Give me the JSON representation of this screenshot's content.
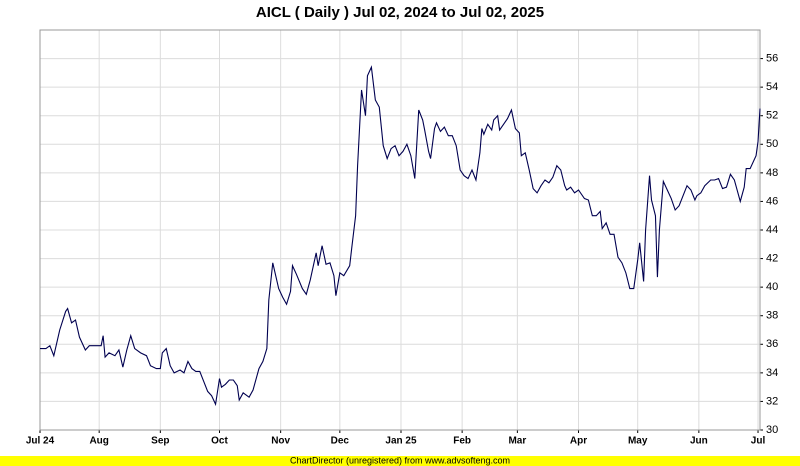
{
  "chart_data": {
    "type": "line",
    "title": "AICL ( Daily ) Jul 02, 2024 to Jul 02, 2025",
    "footer": "ChartDirector (unregistered) from www.advsofteng.com",
    "xlim": [
      0,
      365
    ],
    "ylim": [
      30,
      58
    ],
    "yticks": [
      30,
      32,
      34,
      36,
      38,
      40,
      42,
      44,
      46,
      48,
      50,
      52,
      54,
      56
    ],
    "xticks": [
      {
        "value": 0,
        "label": "Jul 24"
      },
      {
        "value": 30,
        "label": "Aug"
      },
      {
        "value": 61,
        "label": "Sep"
      },
      {
        "value": 91,
        "label": "Oct"
      },
      {
        "value": 122,
        "label": "Nov"
      },
      {
        "value": 152,
        "label": "Dec"
      },
      {
        "value": 183,
        "label": "Jan 25"
      },
      {
        "value": 214,
        "label": "Feb"
      },
      {
        "value": 242,
        "label": "Mar"
      },
      {
        "value": 273,
        "label": "Apr"
      },
      {
        "value": 303,
        "label": "May"
      },
      {
        "value": 334,
        "label": "Jun"
      },
      {
        "value": 364,
        "label": "Jul"
      }
    ],
    "grid": true,
    "y_axis_side": "right",
    "series": [
      {
        "color": "#000050",
        "x": [
          0,
          3,
          5,
          7,
          10,
          13,
          14,
          16,
          18,
          20,
          23,
          25,
          28,
          31,
          32,
          33,
          35,
          38,
          40,
          42,
          44,
          46,
          48,
          51,
          54,
          56,
          59,
          61,
          62,
          64,
          66,
          68,
          71,
          73,
          75,
          77,
          79,
          81,
          83,
          85,
          87,
          89,
          91,
          92,
          94,
          96,
          98,
          100,
          101,
          103,
          104,
          106,
          108,
          111,
          113,
          115,
          116,
          118,
          121,
          123,
          125,
          127,
          128,
          130,
          133,
          135,
          137,
          140,
          141,
          143,
          145,
          147,
          149,
          150,
          152,
          154,
          157,
          158,
          160,
          161,
          163,
          165,
          166,
          168,
          170,
          172,
          174,
          176,
          178,
          180,
          182,
          184,
          186,
          188,
          190,
          192,
          194,
          195,
          197,
          198,
          200,
          201,
          203,
          205,
          207,
          209,
          211,
          213,
          215,
          217,
          219,
          221,
          223,
          224,
          225,
          227,
          229,
          230,
          232,
          233,
          235,
          237,
          239,
          241,
          243,
          244,
          246,
          248,
          250,
          252,
          254,
          256,
          258,
          260,
          262,
          264,
          266,
          267,
          269,
          271,
          273,
          276,
          278,
          280,
          282,
          284,
          285,
          287,
          289,
          291,
          293,
          295,
          297,
          299,
          301,
          303,
          304,
          306,
          307,
          309,
          310,
          312,
          313,
          314,
          316,
          318,
          320,
          322,
          324,
          326,
          328,
          330,
          332,
          333,
          335,
          337,
          340,
          342,
          344,
          346,
          348,
          350,
          352,
          353,
          355,
          357,
          358,
          360,
          363,
          364,
          365
        ],
        "values": [
          35.7,
          35.7,
          35.9,
          35.2,
          37,
          38.3,
          38.5,
          37.5,
          37.7,
          36.5,
          35.6,
          35.9,
          35.9,
          35.9,
          36.6,
          35.1,
          35.4,
          35.2,
          35.6,
          34.4,
          35.6,
          36.6,
          35.7,
          35.4,
          35.2,
          34.5,
          34.3,
          34.3,
          35.4,
          35.7,
          34.5,
          34,
          34.2,
          34,
          34.8,
          34.3,
          34.1,
          34.1,
          33.4,
          32.7,
          32.4,
          31.8,
          33.6,
          33,
          33.2,
          33.5,
          33.5,
          33.1,
          32.1,
          32.6,
          32.5,
          32.3,
          32.8,
          34.3,
          34.8,
          35.7,
          39.1,
          41.7,
          39.9,
          39.3,
          38.8,
          39.7,
          41.5,
          40.9,
          39.9,
          39.5,
          40.5,
          42.4,
          41.5,
          42.9,
          41.6,
          41.7,
          40.8,
          39.4,
          41,
          40.8,
          41.5,
          42.7,
          45,
          48.5,
          53.8,
          52,
          54.8,
          55.4,
          53.1,
          52.6,
          49.9,
          49,
          49.7,
          49.9,
          49.2,
          49.5,
          50,
          49.2,
          47.6,
          52.4,
          51.7,
          51,
          49.5,
          49,
          51.1,
          51.5,
          50.9,
          51.2,
          50.6,
          50.6,
          49.9,
          48.2,
          47.8,
          47.6,
          48.2,
          47.5,
          49.4,
          51.1,
          50.7,
          51.4,
          51,
          51.7,
          52,
          51,
          51.4,
          51.8,
          52.4,
          51.1,
          50.8,
          49.2,
          49.4,
          48.2,
          46.9,
          46.6,
          47.1,
          47.5,
          47.3,
          47.7,
          48.5,
          48.2,
          47.1,
          46.8,
          47,
          46.6,
          46.8,
          46.2,
          46.1,
          45,
          45,
          45.3,
          44.1,
          44.5,
          43.7,
          43.7,
          42.1,
          41.7,
          41,
          39.9,
          39.9,
          41.9,
          43.1,
          40.4,
          44,
          47.8,
          46.1,
          45,
          40.7,
          44,
          47.4,
          46.8,
          46.2,
          45.4,
          45.7,
          46.4,
          47.1,
          46.8,
          46.1,
          46.4,
          46.6,
          47.1,
          47.5,
          47.5,
          47.6,
          46.9,
          47,
          47.9,
          47.5,
          47,
          46,
          47,
          48.3,
          48.3,
          49.2,
          50.2,
          52.5
        ]
      }
    ]
  }
}
